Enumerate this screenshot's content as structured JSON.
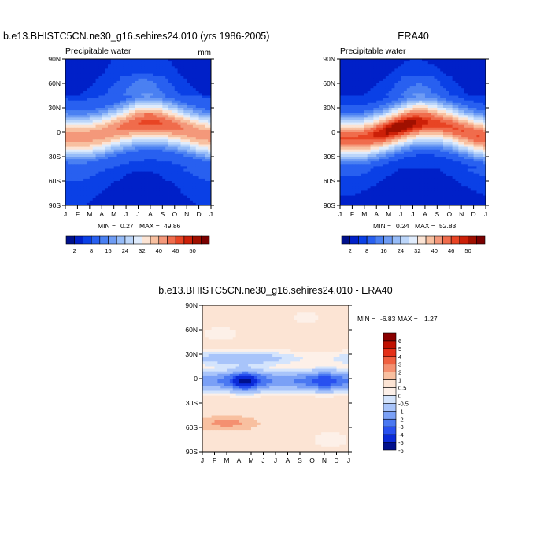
{
  "chart_data": [
    {
      "type": "heatmap",
      "title": "b.e13.BHISTC5CN.ne30_g16.sehires24.010 (yrs 1986-2005)",
      "subtitle": "Precipitable water",
      "units": "mm",
      "x": [
        "J",
        "F",
        "M",
        "A",
        "M",
        "J",
        "J",
        "A",
        "S",
        "O",
        "N",
        "D",
        "J"
      ],
      "y_ticks": [
        "90N",
        "60N",
        "30N",
        "0",
        "30S",
        "60S",
        "90S"
      ],
      "ylim": [
        -90,
        90
      ],
      "stats": {
        "min_label": "MIN =",
        "min": "0.27",
        "max_label": "MAX =",
        "max": "49.86"
      },
      "colorbar": {
        "labels": [
          "2",
          "8",
          "16",
          "24",
          "32",
          "40",
          "46",
          "50"
        ],
        "orientation": "horizontal"
      },
      "field": {
        "eq_max": 42,
        "eq_min": 40,
        "peak_lat": 9,
        "seasonal_shift": 9,
        "width": 22,
        "pole_base": 4,
        "hot_month": 7,
        "hot_amp": 5
      }
    },
    {
      "type": "heatmap",
      "title": "ERA40",
      "subtitle": "Precipitable water",
      "y_ticks": [
        "90N",
        "60N",
        "30N",
        "0",
        "30S",
        "60S",
        "90S"
      ],
      "x": [
        "J",
        "F",
        "M",
        "A",
        "M",
        "J",
        "J",
        "A",
        "S",
        "O",
        "N",
        "D",
        "J"
      ],
      "ylim": [
        -90,
        90
      ],
      "stats": {
        "min_label": "MIN =",
        "min": "0.24",
        "max_label": "MAX =",
        "max": "52.83"
      },
      "colorbar": {
        "labels": [
          "2",
          "8",
          "16",
          "24",
          "32",
          "40",
          "46",
          "50"
        ],
        "orientation": "horizontal"
      },
      "field": {
        "eq_max": 46,
        "eq_min": 43,
        "peak_lat": 7,
        "seasonal_shift": 10,
        "width": 21,
        "pole_base": 3,
        "hot_month": 5,
        "hot_amp": 6
      }
    },
    {
      "type": "heatmap",
      "title": "b.e13.BHISTC5CN.ne30_g16.sehires24.010 - ERA40",
      "y_ticks": [
        "90N",
        "60N",
        "30N",
        "0",
        "30S",
        "60S",
        "90S"
      ],
      "x": [
        "J",
        "F",
        "M",
        "A",
        "M",
        "J",
        "J",
        "A",
        "S",
        "O",
        "N",
        "D",
        "J"
      ],
      "ylim": [
        -90,
        90
      ],
      "stats": {
        "min_label": "MIN =",
        "min": "-6.83",
        "max_label": "MAX =",
        "max": "1.27"
      },
      "colorbar": {
        "labels": [
          "6",
          "5",
          "4",
          "3",
          "2",
          "1",
          "0.5",
          "0",
          "-0.5",
          "-1",
          "-2",
          "-3",
          "-4",
          "-5",
          "-6"
        ],
        "orientation": "vertical"
      }
    }
  ],
  "colors": {
    "pw_scale": [
      "#00108c",
      "#0020c8",
      "#0a40e6",
      "#2860f0",
      "#4a80f2",
      "#6e9cf4",
      "#96bcf8",
      "#bcd6fa",
      "#e0ecfc",
      "#fce4d4",
      "#f8c0a0",
      "#f4987a",
      "#f06c4c",
      "#e84424",
      "#cc2008",
      "#a01000",
      "#7a0000"
    ],
    "diff_scale": [
      "#00108c",
      "#0a2ad8",
      "#2850f0",
      "#4a78f2",
      "#7aa0f6",
      "#a8c4fa",
      "#d4e4fc",
      "#fdf0e8",
      "#fce4d4",
      "#f8c0a0",
      "#f49070",
      "#f06040",
      "#e43018",
      "#c01000",
      "#8a0000"
    ]
  }
}
